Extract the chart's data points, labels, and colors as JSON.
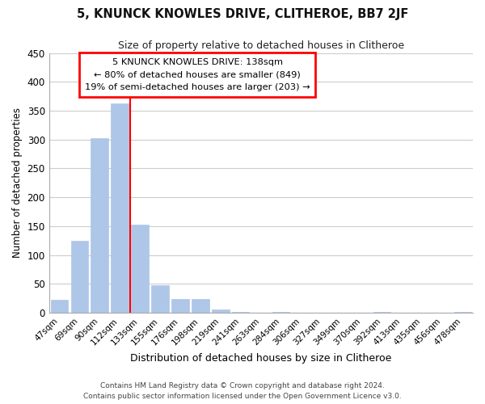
{
  "title": "5, KNUNCK KNOWLES DRIVE, CLITHEROE, BB7 2JF",
  "subtitle": "Size of property relative to detached houses in Clitheroe",
  "xlabel": "Distribution of detached houses by size in Clitheroe",
  "ylabel": "Number of detached properties",
  "bar_labels": [
    "47sqm",
    "69sqm",
    "90sqm",
    "112sqm",
    "133sqm",
    "155sqm",
    "176sqm",
    "198sqm",
    "219sqm",
    "241sqm",
    "263sqm",
    "284sqm",
    "306sqm",
    "327sqm",
    "349sqm",
    "370sqm",
    "392sqm",
    "413sqm",
    "435sqm",
    "456sqm",
    "478sqm"
  ],
  "bar_heights": [
    22,
    125,
    302,
    362,
    152,
    47,
    24,
    24,
    6,
    2,
    0,
    2,
    0,
    0,
    0,
    0,
    1,
    0,
    0,
    0,
    2
  ],
  "bar_color": "#aec6e8",
  "red_line_index": 4,
  "annotation_line1": "5 KNUNCK KNOWLES DRIVE: 138sqm",
  "annotation_line2": "← 80% of detached houses are smaller (849)",
  "annotation_line3": "19% of semi-detached houses are larger (203) →",
  "ylim": [
    0,
    450
  ],
  "yticks": [
    0,
    50,
    100,
    150,
    200,
    250,
    300,
    350,
    400,
    450
  ],
  "footer_line1": "Contains HM Land Registry data © Crown copyright and database right 2024.",
  "footer_line2": "Contains public sector information licensed under the Open Government Licence v3.0.",
  "background_color": "#ffffff",
  "grid_color": "#cccccc"
}
